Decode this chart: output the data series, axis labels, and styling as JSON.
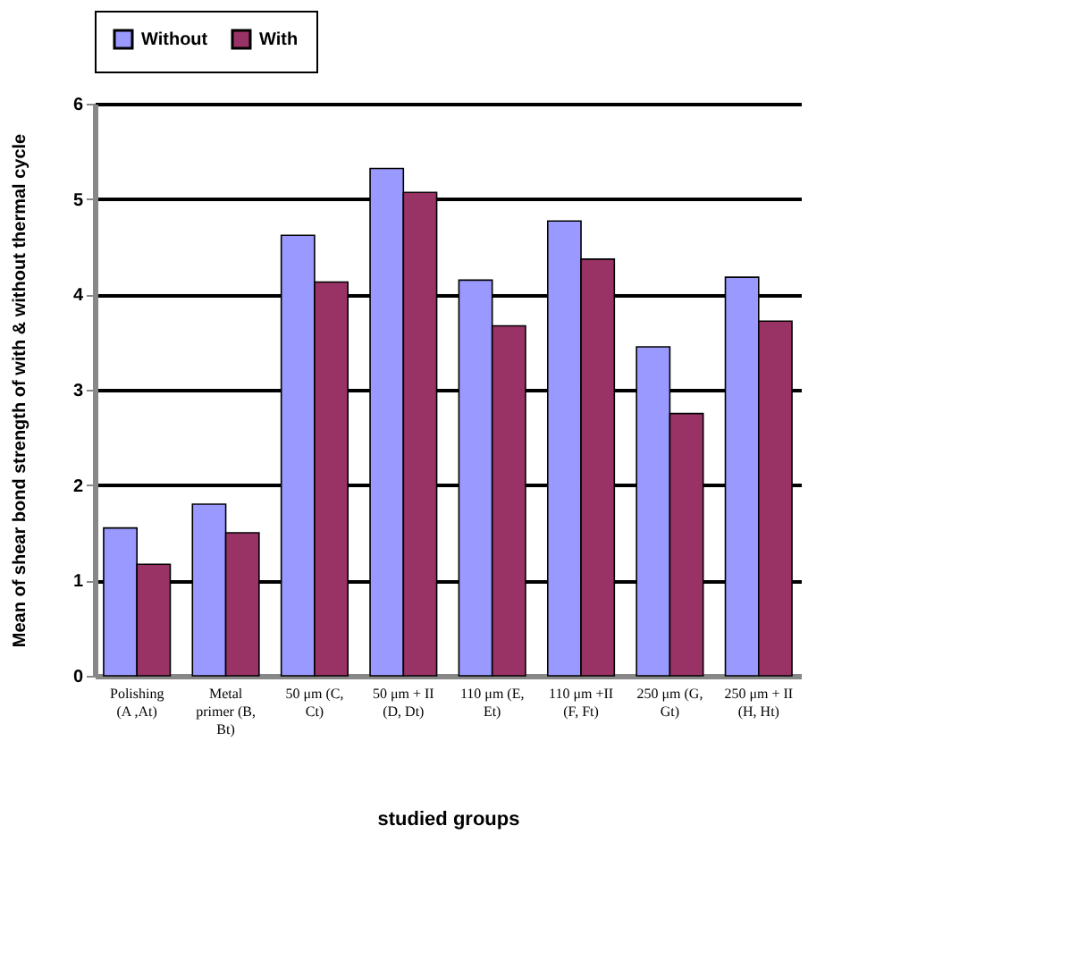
{
  "chart_data": {
    "type": "bar",
    "xlabel": "studied groups",
    "ylabel": "Mean of shear bond strength of with & without thermal cycle",
    "categories": [
      "Polishing (A ,At)",
      "Metal primer (B, Bt)",
      "50 μm (C, Ct)",
      "50 μm + II (D, Dt)",
      "110 μm (E, Et)",
      "110 μm +II (F, Ft)",
      "250 μm (G, Gt)",
      "250 μm + II (H, Ht)"
    ],
    "series": [
      {
        "name": "Without",
        "color": "#9999ff",
        "values": [
          1.55,
          1.8,
          4.62,
          5.32,
          4.15,
          4.77,
          3.45,
          4.18
        ]
      },
      {
        "name": "With",
        "color": "#993366",
        "values": [
          1.17,
          1.5,
          4.13,
          5.07,
          3.67,
          4.37,
          2.75,
          3.72
        ]
      }
    ],
    "ylim": [
      0,
      6
    ],
    "yticks": [
      0,
      1,
      2,
      3,
      4,
      5,
      6
    ],
    "grid": "y",
    "legend": "top"
  }
}
